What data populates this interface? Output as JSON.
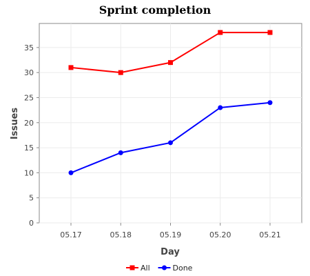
{
  "chart_data": {
    "type": "line",
    "title": "Sprint completion",
    "xlabel": "Day",
    "ylabel": "Issues",
    "categories": [
      "05.17",
      "05.18",
      "05.19",
      "05.20",
      "05.21"
    ],
    "ylim": [
      0,
      39.8
    ],
    "yticks": [
      0,
      5,
      10,
      15,
      20,
      25,
      30,
      35
    ],
    "grid": true,
    "legend_position": "bottom",
    "series": [
      {
        "name": "All",
        "color": "#ff0000",
        "marker": "square",
        "values": [
          31,
          30,
          32,
          38,
          38
        ]
      },
      {
        "name": "Done",
        "color": "#0000ff",
        "marker": "circle",
        "values": [
          10,
          14,
          16,
          23,
          24
        ]
      }
    ]
  }
}
